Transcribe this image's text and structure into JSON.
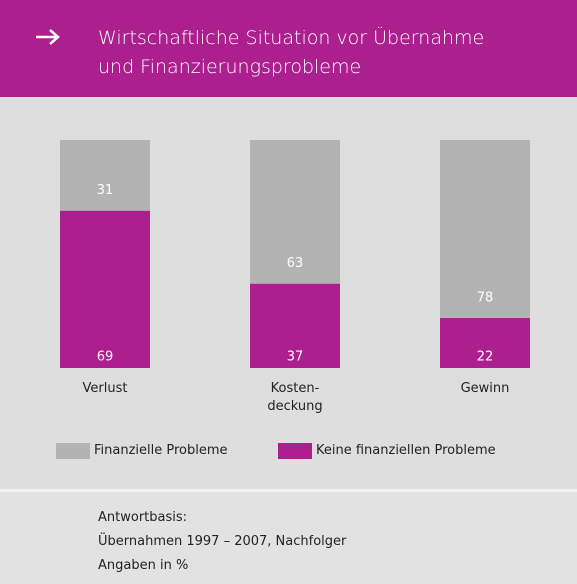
{
  "chart_data": {
    "type": "stacked_bar",
    "title": "Wirtschaftliche Situation vor Übernahme\nund Finanzierungsprobleme",
    "categories": [
      "Verlust",
      "Kosten-\ndeckung",
      "Gewinn"
    ],
    "series": [
      {
        "name": "Finanzielle Probleme",
        "color": "#b3b3b3",
        "values": [
          31,
          63,
          78
        ]
      },
      {
        "name": "Keine finanziellen Probleme",
        "color": "#ab1f8e",
        "values": [
          69,
          37,
          22
        ]
      }
    ],
    "ylim": [
      0,
      100
    ],
    "notes": [
      "Antwortbasis:",
      "Übernahmen 1997 – 2007, Nachfolger",
      "Angaben in %"
    ]
  }
}
